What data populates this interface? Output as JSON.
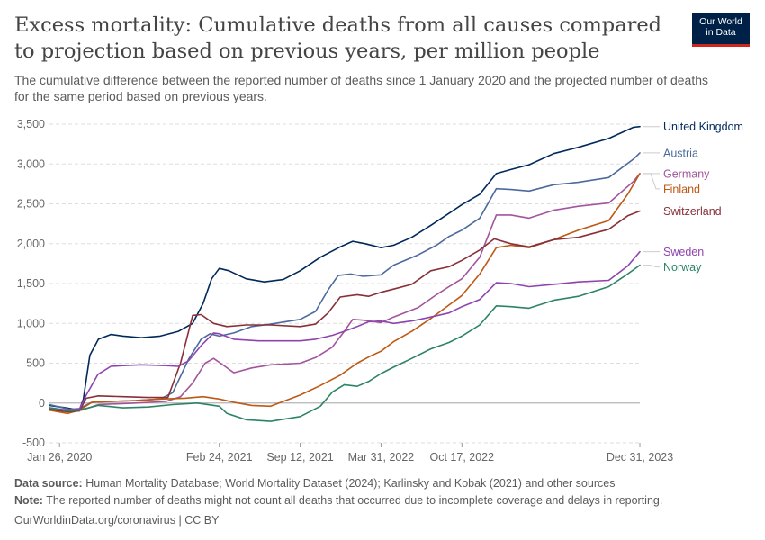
{
  "header": {
    "title": "Excess mortality: Cumulative deaths from all causes compared to projection based on previous years, per million people",
    "subtitle": "The cumulative difference between the reported number of deaths since 1 January 2020 and the projected number of deaths for the same period based on previous years.",
    "logo_line1": "Our World",
    "logo_line2": "in Data"
  },
  "footer": {
    "source_label": "Data source:",
    "source_text": " Human Mortality Database; World Mortality Dataset (2024); Karlinsky and Kobak (2021) and other sources",
    "note_label": "Note:",
    "note_text": " The reported number of deaths might not count all deaths that occurred due to incomplete coverage and delays in reporting.",
    "credit": "OurWorldinData.org/coronavirus | CC BY"
  },
  "colors": {
    "United Kingdom": "#00295b",
    "Austria": "#4c6a9c",
    "Germany": "#a2559c",
    "Finland": "#be5915",
    "Switzerland": "#883039",
    "Sweden": "#8e44ad",
    "Norway": "#2c8465"
  },
  "chart_data": {
    "type": "line",
    "x_ticks": [
      "Jan 26, 2020",
      "Feb 24, 2021",
      "Sep 12, 2021",
      "Mar 31, 2022",
      "Oct 17, 2022",
      "Dec 31, 2023"
    ],
    "y_ticks": [
      "-500",
      "0",
      "500",
      "1,000",
      "1,500",
      "2,000",
      "2,500",
      "3,000",
      "3,500"
    ],
    "ylim": [
      -500,
      3500
    ],
    "xlim": [
      "2020-01-01",
      "2023-12-31"
    ],
    "grid": true,
    "legend": "right, end-of-line labels",
    "series": [
      {
        "name": "United Kingdom",
        "color": "#00295b",
        "points": [
          [
            "2020-01-01",
            -30
          ],
          [
            "2020-02-10",
            -60
          ],
          [
            "2020-03-15",
            -90
          ],
          [
            "2020-03-25",
            50
          ],
          [
            "2020-04-10",
            600
          ],
          [
            "2020-05-01",
            800
          ],
          [
            "2020-06-01",
            860
          ],
          [
            "2020-07-01",
            840
          ],
          [
            "2020-08-15",
            820
          ],
          [
            "2020-10-01",
            840
          ],
          [
            "2020-11-15",
            900
          ],
          [
            "2020-12-20",
            1000
          ],
          [
            "2021-01-15",
            1250
          ],
          [
            "2021-02-05",
            1560
          ],
          [
            "2021-02-24",
            1690
          ],
          [
            "2021-03-20",
            1660
          ],
          [
            "2021-05-01",
            1560
          ],
          [
            "2021-06-15",
            1520
          ],
          [
            "2021-08-01",
            1550
          ],
          [
            "2021-09-12",
            1660
          ],
          [
            "2021-11-01",
            1830
          ],
          [
            "2021-12-20",
            1960
          ],
          [
            "2022-01-20",
            2030
          ],
          [
            "2022-02-20",
            2000
          ],
          [
            "2022-03-31",
            1950
          ],
          [
            "2022-05-01",
            1980
          ],
          [
            "2022-06-15",
            2080
          ],
          [
            "2022-08-01",
            2230
          ],
          [
            "2022-09-15",
            2380
          ],
          [
            "2022-10-17",
            2490
          ],
          [
            "2022-11-30",
            2620
          ],
          [
            "2023-01-10",
            2880
          ],
          [
            "2023-02-15",
            2930
          ],
          [
            "2023-04-01",
            2990
          ],
          [
            "2023-06-01",
            3130
          ],
          [
            "2023-08-01",
            3210
          ],
          [
            "2023-10-15",
            3320
          ],
          [
            "2023-12-15",
            3460
          ],
          [
            "2023-12-31",
            3470
          ]
        ]
      },
      {
        "name": "Austria",
        "color": "#4c6a9c",
        "points": [
          [
            "2020-01-01",
            -20
          ],
          [
            "2020-02-20",
            -80
          ],
          [
            "2020-03-15",
            -70
          ],
          [
            "2020-04-15",
            10
          ],
          [
            "2020-06-01",
            20
          ],
          [
            "2020-08-01",
            30
          ],
          [
            "2020-10-01",
            50
          ],
          [
            "2020-11-01",
            130
          ],
          [
            "2020-12-10",
            550
          ],
          [
            "2021-01-10",
            800
          ],
          [
            "2021-02-01",
            870
          ],
          [
            "2021-02-24",
            840
          ],
          [
            "2021-04-01",
            880
          ],
          [
            "2021-05-15",
            960
          ],
          [
            "2021-07-01",
            990
          ],
          [
            "2021-09-12",
            1050
          ],
          [
            "2021-10-20",
            1150
          ],
          [
            "2021-11-20",
            1420
          ],
          [
            "2021-12-15",
            1600
          ],
          [
            "2022-01-15",
            1620
          ],
          [
            "2022-02-15",
            1590
          ],
          [
            "2022-03-31",
            1610
          ],
          [
            "2022-05-01",
            1730
          ],
          [
            "2022-07-01",
            1860
          ],
          [
            "2022-08-15",
            1980
          ],
          [
            "2022-09-15",
            2090
          ],
          [
            "2022-10-17",
            2170
          ],
          [
            "2022-11-30",
            2320
          ],
          [
            "2023-01-10",
            2690
          ],
          [
            "2023-02-15",
            2680
          ],
          [
            "2023-04-01",
            2660
          ],
          [
            "2023-06-01",
            2740
          ],
          [
            "2023-08-01",
            2770
          ],
          [
            "2023-10-15",
            2830
          ],
          [
            "2023-12-15",
            3060
          ],
          [
            "2023-12-31",
            3140
          ]
        ]
      },
      {
        "name": "Germany",
        "color": "#a2559c",
        "points": [
          [
            "2020-01-01",
            -80
          ],
          [
            "2020-02-15",
            -100
          ],
          [
            "2020-03-20",
            -90
          ],
          [
            "2020-05-01",
            -20
          ],
          [
            "2020-08-01",
            0
          ],
          [
            "2020-10-15",
            20
          ],
          [
            "2020-11-20",
            80
          ],
          [
            "2020-12-20",
            250
          ],
          [
            "2021-01-20",
            500
          ],
          [
            "2021-02-10",
            560
          ],
          [
            "2021-03-10",
            460
          ],
          [
            "2021-04-01",
            380
          ],
          [
            "2021-05-15",
            440
          ],
          [
            "2021-07-01",
            480
          ],
          [
            "2021-09-12",
            500
          ],
          [
            "2021-10-20",
            570
          ],
          [
            "2021-11-30",
            700
          ],
          [
            "2021-12-30",
            900
          ],
          [
            "2022-01-20",
            1050
          ],
          [
            "2022-02-15",
            1040
          ],
          [
            "2022-03-31",
            1010
          ],
          [
            "2022-05-01",
            1080
          ],
          [
            "2022-07-01",
            1200
          ],
          [
            "2022-08-15",
            1360
          ],
          [
            "2022-09-15",
            1460
          ],
          [
            "2022-10-17",
            1560
          ],
          [
            "2022-11-30",
            1830
          ],
          [
            "2023-01-10",
            2360
          ],
          [
            "2023-02-15",
            2360
          ],
          [
            "2023-04-01",
            2320
          ],
          [
            "2023-06-01",
            2420
          ],
          [
            "2023-08-01",
            2470
          ],
          [
            "2023-10-15",
            2510
          ],
          [
            "2023-12-15",
            2780
          ],
          [
            "2023-12-31",
            2880
          ]
        ]
      },
      {
        "name": "Finland",
        "color": "#be5915",
        "points": [
          [
            "2020-01-01",
            -90
          ],
          [
            "2020-02-15",
            -130
          ],
          [
            "2020-03-15",
            -90
          ],
          [
            "2020-04-15",
            10
          ],
          [
            "2020-06-01",
            20
          ],
          [
            "2020-08-01",
            30
          ],
          [
            "2020-10-01",
            50
          ],
          [
            "2020-12-01",
            60
          ],
          [
            "2021-01-15",
            80
          ],
          [
            "2021-02-24",
            50
          ],
          [
            "2021-04-01",
            10
          ],
          [
            "2021-05-15",
            -30
          ],
          [
            "2021-07-01",
            -40
          ],
          [
            "2021-08-01",
            20
          ],
          [
            "2021-09-12",
            100
          ],
          [
            "2021-11-01",
            220
          ],
          [
            "2021-12-20",
            350
          ],
          [
            "2022-01-31",
            500
          ],
          [
            "2022-03-01",
            580
          ],
          [
            "2022-03-31",
            650
          ],
          [
            "2022-05-01",
            770
          ],
          [
            "2022-06-15",
            900
          ],
          [
            "2022-08-01",
            1060
          ],
          [
            "2022-09-15",
            1230
          ],
          [
            "2022-10-17",
            1350
          ],
          [
            "2022-11-30",
            1620
          ],
          [
            "2023-01-10",
            1950
          ],
          [
            "2023-02-15",
            1980
          ],
          [
            "2023-04-01",
            1950
          ],
          [
            "2023-06-01",
            2050
          ],
          [
            "2023-08-01",
            2170
          ],
          [
            "2023-10-15",
            2290
          ],
          [
            "2023-12-01",
            2620
          ],
          [
            "2023-12-31",
            2880
          ]
        ]
      },
      {
        "name": "Switzerland",
        "color": "#883039",
        "points": [
          [
            "2020-01-01",
            -80
          ],
          [
            "2020-02-15",
            -110
          ],
          [
            "2020-03-15",
            -100
          ],
          [
            "2020-04-01",
            60
          ],
          [
            "2020-05-01",
            90
          ],
          [
            "2020-07-01",
            80
          ],
          [
            "2020-09-01",
            70
          ],
          [
            "2020-10-20",
            70
          ],
          [
            "2020-11-20",
            500
          ],
          [
            "2020-12-20",
            1100
          ],
          [
            "2021-01-10",
            1110
          ],
          [
            "2021-02-10",
            1000
          ],
          [
            "2021-03-15",
            960
          ],
          [
            "2021-05-01",
            980
          ],
          [
            "2021-07-01",
            980
          ],
          [
            "2021-09-12",
            960
          ],
          [
            "2021-10-20",
            990
          ],
          [
            "2021-11-20",
            1130
          ],
          [
            "2021-12-20",
            1330
          ],
          [
            "2022-01-31",
            1360
          ],
          [
            "2022-02-28",
            1340
          ],
          [
            "2022-03-31",
            1390
          ],
          [
            "2022-05-01",
            1430
          ],
          [
            "2022-06-15",
            1490
          ],
          [
            "2022-08-01",
            1660
          ],
          [
            "2022-09-15",
            1710
          ],
          [
            "2022-10-17",
            1790
          ],
          [
            "2022-11-30",
            1920
          ],
          [
            "2023-01-05",
            2060
          ],
          [
            "2023-02-15",
            2000
          ],
          [
            "2023-04-01",
            1960
          ],
          [
            "2023-06-01",
            2050
          ],
          [
            "2023-08-01",
            2080
          ],
          [
            "2023-10-15",
            2180
          ],
          [
            "2023-12-01",
            2350
          ],
          [
            "2023-12-31",
            2410
          ]
        ]
      },
      {
        "name": "Sweden",
        "color": "#8e44ad",
        "points": [
          [
            "2020-01-01",
            -60
          ],
          [
            "2020-02-15",
            -90
          ],
          [
            "2020-03-15",
            -80
          ],
          [
            "2020-04-01",
            100
          ],
          [
            "2020-04-30",
            360
          ],
          [
            "2020-06-01",
            460
          ],
          [
            "2020-07-01",
            470
          ],
          [
            "2020-08-15",
            480
          ],
          [
            "2020-10-15",
            470
          ],
          [
            "2020-11-15",
            460
          ],
          [
            "2020-12-10",
            530
          ],
          [
            "2021-01-10",
            720
          ],
          [
            "2021-02-10",
            880
          ],
          [
            "2021-02-24",
            870
          ],
          [
            "2021-04-01",
            800
          ],
          [
            "2021-06-01",
            780
          ],
          [
            "2021-09-12",
            780
          ],
          [
            "2021-10-20",
            800
          ],
          [
            "2021-12-01",
            850
          ],
          [
            "2021-12-30",
            900
          ],
          [
            "2022-01-31",
            960
          ],
          [
            "2022-02-28",
            1020
          ],
          [
            "2022-03-31",
            1030
          ],
          [
            "2022-05-01",
            1000
          ],
          [
            "2022-06-15",
            1030
          ],
          [
            "2022-08-01",
            1080
          ],
          [
            "2022-09-15",
            1130
          ],
          [
            "2022-10-17",
            1210
          ],
          [
            "2022-11-30",
            1300
          ],
          [
            "2023-01-10",
            1510
          ],
          [
            "2023-02-15",
            1500
          ],
          [
            "2023-04-01",
            1460
          ],
          [
            "2023-06-01",
            1490
          ],
          [
            "2023-08-01",
            1520
          ],
          [
            "2023-10-15",
            1540
          ],
          [
            "2023-12-01",
            1720
          ],
          [
            "2023-12-31",
            1900
          ]
        ]
      },
      {
        "name": "Norway",
        "color": "#2c8465",
        "points": [
          [
            "2020-01-01",
            -60
          ],
          [
            "2020-02-15",
            -100
          ],
          [
            "2020-03-15",
            -90
          ],
          [
            "2020-05-01",
            -30
          ],
          [
            "2020-07-01",
            -60
          ],
          [
            "2020-09-01",
            -50
          ],
          [
            "2020-11-01",
            -20
          ],
          [
            "2021-01-01",
            0
          ],
          [
            "2021-02-24",
            -40
          ],
          [
            "2021-03-15",
            -130
          ],
          [
            "2021-05-01",
            -210
          ],
          [
            "2021-07-01",
            -230
          ],
          [
            "2021-09-12",
            -170
          ],
          [
            "2021-11-01",
            -40
          ],
          [
            "2021-12-01",
            140
          ],
          [
            "2021-12-30",
            230
          ],
          [
            "2022-01-31",
            210
          ],
          [
            "2022-02-28",
            270
          ],
          [
            "2022-03-31",
            370
          ],
          [
            "2022-05-01",
            450
          ],
          [
            "2022-06-15",
            560
          ],
          [
            "2022-08-01",
            680
          ],
          [
            "2022-09-15",
            760
          ],
          [
            "2022-10-17",
            840
          ],
          [
            "2022-11-30",
            980
          ],
          [
            "2023-01-10",
            1220
          ],
          [
            "2023-02-15",
            1210
          ],
          [
            "2023-04-01",
            1190
          ],
          [
            "2023-06-01",
            1290
          ],
          [
            "2023-08-01",
            1340
          ],
          [
            "2023-10-15",
            1460
          ],
          [
            "2023-12-01",
            1620
          ],
          [
            "2023-12-31",
            1730
          ]
        ]
      }
    ]
  }
}
